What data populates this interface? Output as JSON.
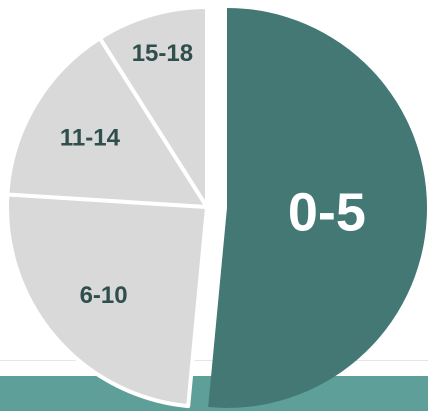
{
  "chart_data": {
    "type": "pie",
    "slices": [
      {
        "label": "0-5",
        "value": 51.5,
        "color": "#437874",
        "label_color": "#ffffff",
        "emphasis": true
      },
      {
        "label": "6-10",
        "value": 24.5,
        "color": "#d9d9d9",
        "label_color": "#2f4f4d",
        "emphasis": false
      },
      {
        "label": "11-14",
        "value": 15.0,
        "color": "#d9d9d9",
        "label_color": "#2f4f4d",
        "emphasis": false
      },
      {
        "label": "15-18",
        "value": 9.0,
        "color": "#d9d9d9",
        "label_color": "#2f4f4d",
        "emphasis": false
      }
    ],
    "start": "12 o'clock",
    "direction": "clockwise",
    "exploded_slice": "0-5",
    "legend": "none"
  },
  "colors": {
    "background_band": "#5f9f99",
    "slice_separator": "#ffffff"
  }
}
